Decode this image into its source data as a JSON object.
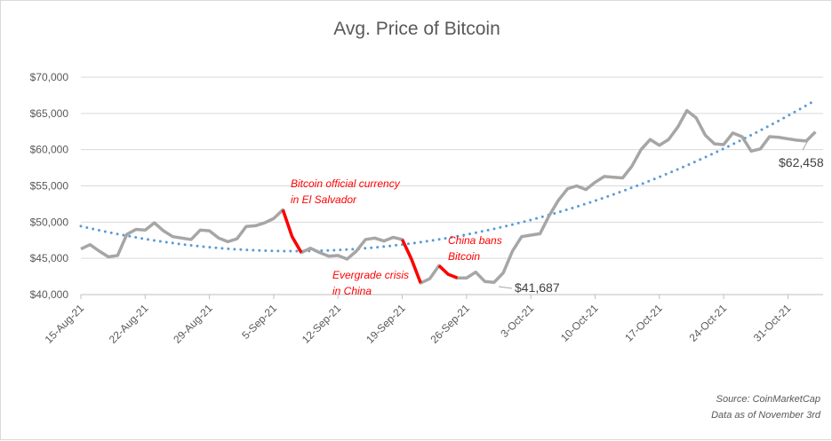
{
  "chart_data": {
    "type": "line",
    "title": "Avg. Price of Bitcoin",
    "ylim": [
      40000,
      70000
    ],
    "y_ticks": [
      "$40,000",
      "$45,000",
      "$50,000",
      "$55,000",
      "$60,000",
      "$65,000",
      "$70,000"
    ],
    "x_start": "15-Aug-21",
    "x_ticks": [
      "15-Aug-21",
      "22-Aug-21",
      "29-Aug-21",
      "5-Sep-21",
      "12-Sep-21",
      "19-Sep-21",
      "26-Sep-21",
      "3-Oct-21",
      "10-Oct-21",
      "17-Oct-21",
      "24-Oct-21",
      "31-Oct-21"
    ],
    "grid": true,
    "series": [
      {
        "color": "#a6a6a6",
        "values": [
          46300,
          46900,
          46000,
          45200,
          45400,
          48300,
          49000,
          48900,
          49900,
          48800,
          48000,
          47800,
          47600,
          48900,
          48800,
          47800,
          47300,
          47700,
          49400,
          49500,
          49900,
          50500,
          51700,
          48000,
          45800,
          46400,
          45800,
          45300,
          45400,
          44900,
          46000,
          47600,
          47800,
          47400,
          47900,
          47600,
          44900,
          41600,
          42200,
          44000,
          42800,
          42300,
          42300,
          43100,
          41800,
          41687,
          43000,
          46000,
          48000,
          48200,
          48400,
          50900,
          53000,
          54600,
          55000,
          54500,
          55500,
          56300,
          56200,
          56100,
          57700,
          60000,
          61400,
          60600,
          61400,
          63100,
          65400,
          64400,
          62000,
          60800,
          60700,
          62300,
          61800,
          59800,
          60100,
          61800,
          61700,
          61500,
          61300,
          61200,
          62458
        ]
      }
    ],
    "highlight_color": "#ff0000",
    "highlight_ranges": [
      [
        "6-Sep-21",
        "8-Sep-21"
      ],
      [
        "19-Sep-21",
        "21-Sep-21"
      ],
      [
        "23-Sep-21",
        "25-Sep-21"
      ]
    ],
    "trendline": {
      "type": "polynomial",
      "order": 2,
      "color": "#5b9bd5",
      "style": "dotted"
    },
    "annotations": [
      {
        "lines": [
          "Bitcoin official currency",
          "in El Salvador"
        ]
      },
      {
        "lines": [
          "Evergrade crisis",
          "in China"
        ]
      },
      {
        "lines": [
          "China bans",
          "Bitcoin"
        ]
      }
    ],
    "data_labels": [
      "$41,687",
      "$62,458"
    ],
    "source": [
      "Source: CoinMarketCap",
      "Data as of November 3rd"
    ]
  }
}
